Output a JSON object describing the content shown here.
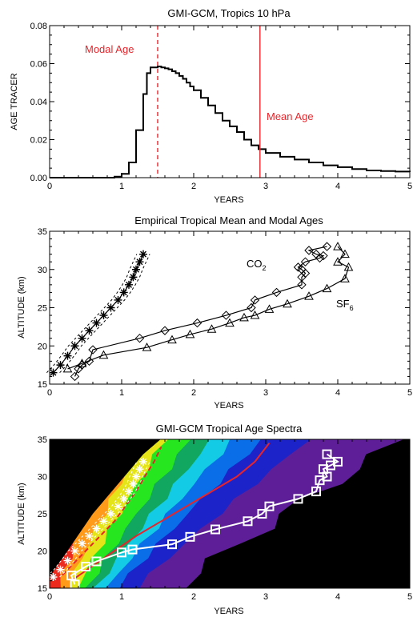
{
  "chart_data": [
    {
      "type": "line",
      "step": true,
      "title": "GMI-GCM, Tropics 10 hPa",
      "xlabel": "YEARS",
      "ylabel": "AGE TRACER",
      "xlim": [
        0,
        5
      ],
      "ylim": [
        0,
        0.08
      ],
      "xticks": [
        "0",
        "1",
        "2",
        "3",
        "4",
        "5"
      ],
      "yticks": [
        "0.00",
        "0.02",
        "0.04",
        "0.06",
        "0.08"
      ],
      "annotations": {
        "modal_label": "Modal Age",
        "mean_label": "Mean Age",
        "modal_age": 1.5,
        "mean_age": 2.92,
        "line_color": "#e8242a"
      },
      "series": [
        {
          "x": [
            0.0,
            0.9,
            1.0,
            1.1,
            1.2,
            1.3,
            1.35,
            1.4,
            1.45,
            1.5,
            1.55,
            1.6,
            1.65,
            1.7,
            1.75,
            1.8,
            1.85,
            1.9,
            1.95,
            2.0,
            2.1,
            2.2,
            2.3,
            2.4,
            2.5,
            2.6,
            2.7,
            2.8,
            2.9,
            3.0,
            3.2,
            3.4,
            3.6,
            3.8,
            4.0,
            4.2,
            4.4,
            4.6,
            4.8,
            5.0
          ],
          "y": [
            0.0,
            0.0005,
            0.002,
            0.008,
            0.025,
            0.044,
            0.055,
            0.058,
            0.058,
            0.0585,
            0.058,
            0.0575,
            0.057,
            0.056,
            0.055,
            0.0535,
            0.052,
            0.05,
            0.048,
            0.046,
            0.042,
            0.038,
            0.034,
            0.03,
            0.027,
            0.024,
            0.02,
            0.017,
            0.015,
            0.013,
            0.011,
            0.0095,
            0.008,
            0.0065,
            0.0055,
            0.0045,
            0.0038,
            0.0035,
            0.0032,
            0.003
          ]
        }
      ]
    },
    {
      "type": "scatter",
      "title": "Empirical Tropical Mean and Modal Ages",
      "xlabel": "YEARS",
      "ylabel": "ALTITUDE (km)",
      "xlim": [
        0,
        5
      ],
      "ylim": [
        15,
        35
      ],
      "xticks": [
        "0",
        "1",
        "2",
        "3",
        "4",
        "5"
      ],
      "yticks": [
        "15",
        "20",
        "25",
        "30",
        "35"
      ],
      "labels": {
        "co2_base": "CO",
        "co2_sub": "2",
        "sf6_base": "SF",
        "sf6_sub": "6"
      },
      "series": [
        {
          "marker": "diamond",
          "x": [
            0.35,
            0.4,
            0.45,
            0.55,
            0.6,
            1.25,
            1.6,
            2.05,
            2.45,
            2.8,
            2.85,
            3.15,
            3.5,
            3.5,
            3.55,
            3.5,
            3.45,
            3.55,
            3.75,
            3.8,
            3.7,
            3.6,
            3.85
          ],
          "y": [
            16.0,
            17.0,
            17.5,
            18.0,
            19.5,
            21.0,
            22.0,
            23.0,
            24.0,
            25.0,
            26.0,
            27.0,
            28.0,
            29.0,
            29.5,
            30.0,
            30.3,
            31.0,
            31.5,
            31.8,
            32.0,
            32.5,
            33.0
          ]
        },
        {
          "marker": "triangle",
          "x": [
            0.25,
            0.45,
            0.75,
            1.35,
            1.7,
            1.95,
            2.25,
            2.5,
            2.7,
            2.85,
            3.05,
            3.3,
            3.6,
            3.85,
            4.1,
            4.15,
            4.0,
            4.1,
            4.0
          ],
          "y": [
            17.0,
            17.7,
            18.8,
            19.8,
            20.8,
            21.5,
            22.2,
            23.0,
            23.7,
            24.0,
            24.8,
            25.5,
            26.5,
            27.5,
            28.8,
            30.3,
            31.0,
            32.0,
            33.0
          ]
        },
        {
          "marker": "asterisk",
          "x": [
            0.05,
            0.15,
            0.25,
            0.35,
            0.45,
            0.55,
            0.65,
            0.75,
            0.85,
            0.95,
            1.03,
            1.1,
            1.16,
            1.2,
            1.25,
            1.3
          ],
          "y": [
            16.5,
            17.5,
            18.7,
            20.0,
            21.0,
            22.0,
            23.0,
            24.0,
            25.0,
            26.0,
            27.0,
            28.0,
            29.0,
            30.0,
            31.0,
            32.0
          ]
        }
      ]
    },
    {
      "type": "heatmap",
      "title": "GMI-GCM Tropical Age Spectra",
      "xlabel": "YEARS",
      "ylabel": "ALTITUDE (km)",
      "xlim": [
        0,
        5
      ],
      "ylim": [
        15,
        35
      ],
      "xticks": [
        "0",
        "1",
        "2",
        "3",
        "4",
        "5"
      ],
      "yticks": [
        "15",
        "20",
        "25",
        "30",
        "35"
      ],
      "background": "#000000",
      "bands": [
        {
          "color": "#5e1e98",
          "edge15": 1.75,
          "edge35": 4.9
        },
        {
          "color": "#1c23c9",
          "edge15": 1.2,
          "edge35": 3.6
        },
        {
          "color": "#0a6ee8",
          "edge15": 0.95,
          "edge35": 2.95
        },
        {
          "color": "#14cbe6",
          "edge15": 0.8,
          "edge35": 2.55
        },
        {
          "color": "#11a760",
          "edge15": 0.65,
          "edge35": 2.25
        },
        {
          "color": "#26e61f",
          "edge15": 0.52,
          "edge35": 1.95
        },
        {
          "color": "#e4e418",
          "edge15": 0.38,
          "edge35": 1.6
        },
        {
          "color": "#ff9a1a",
          "edge15": 0.25,
          "edge35": 1.3
        },
        {
          "color": "#ec2a1e",
          "edge15": 0.12,
          "edge35": 0.95
        }
      ],
      "curves": {
        "mean_age": {
          "color": "#e8242a",
          "x": [
            0.3,
            0.6,
            0.9,
            1.2,
            1.55,
            1.9,
            2.25,
            2.6,
            2.85,
            3.05
          ],
          "y": [
            16.0,
            18.0,
            20.0,
            22.0,
            24.0,
            26.0,
            28.0,
            30.0,
            32.0,
            34.5
          ]
        },
        "modal_age": {
          "color": "#e8242a",
          "x": [
            0.1,
            0.3,
            0.5,
            0.7,
            0.9,
            1.05,
            1.2,
            1.32,
            1.45,
            1.55
          ],
          "y": [
            16.0,
            18.0,
            20.0,
            22.0,
            24.0,
            26.0,
            28.0,
            30.0,
            32.0,
            34.0
          ]
        }
      },
      "series": [
        {
          "marker": "square",
          "x": [
            0.35,
            0.3,
            0.5,
            0.65,
            1.0,
            1.15,
            1.7,
            1.95,
            2.3,
            2.75,
            2.95,
            3.05,
            3.45,
            3.7,
            3.75,
            3.85,
            3.8,
            3.9,
            4.0,
            3.85
          ],
          "y": [
            15.5,
            16.7,
            17.9,
            18.6,
            19.8,
            20.2,
            20.9,
            21.9,
            22.9,
            24.0,
            25.0,
            26.0,
            27.0,
            28.0,
            29.5,
            30.0,
            31.0,
            31.5,
            32.0,
            33.0
          ]
        },
        {
          "marker": "asterisk",
          "color": "#ffffff",
          "x": [
            0.05,
            0.15,
            0.25,
            0.35,
            0.45,
            0.55,
            0.65,
            0.75,
            0.85,
            0.95,
            1.03,
            1.1,
            1.16,
            1.2,
            1.25,
            1.3
          ],
          "y": [
            16.5,
            17.5,
            18.7,
            20.0,
            21.0,
            22.0,
            23.0,
            24.0,
            25.0,
            26.0,
            27.0,
            28.0,
            29.0,
            30.0,
            31.0,
            32.0
          ]
        }
      ]
    }
  ]
}
